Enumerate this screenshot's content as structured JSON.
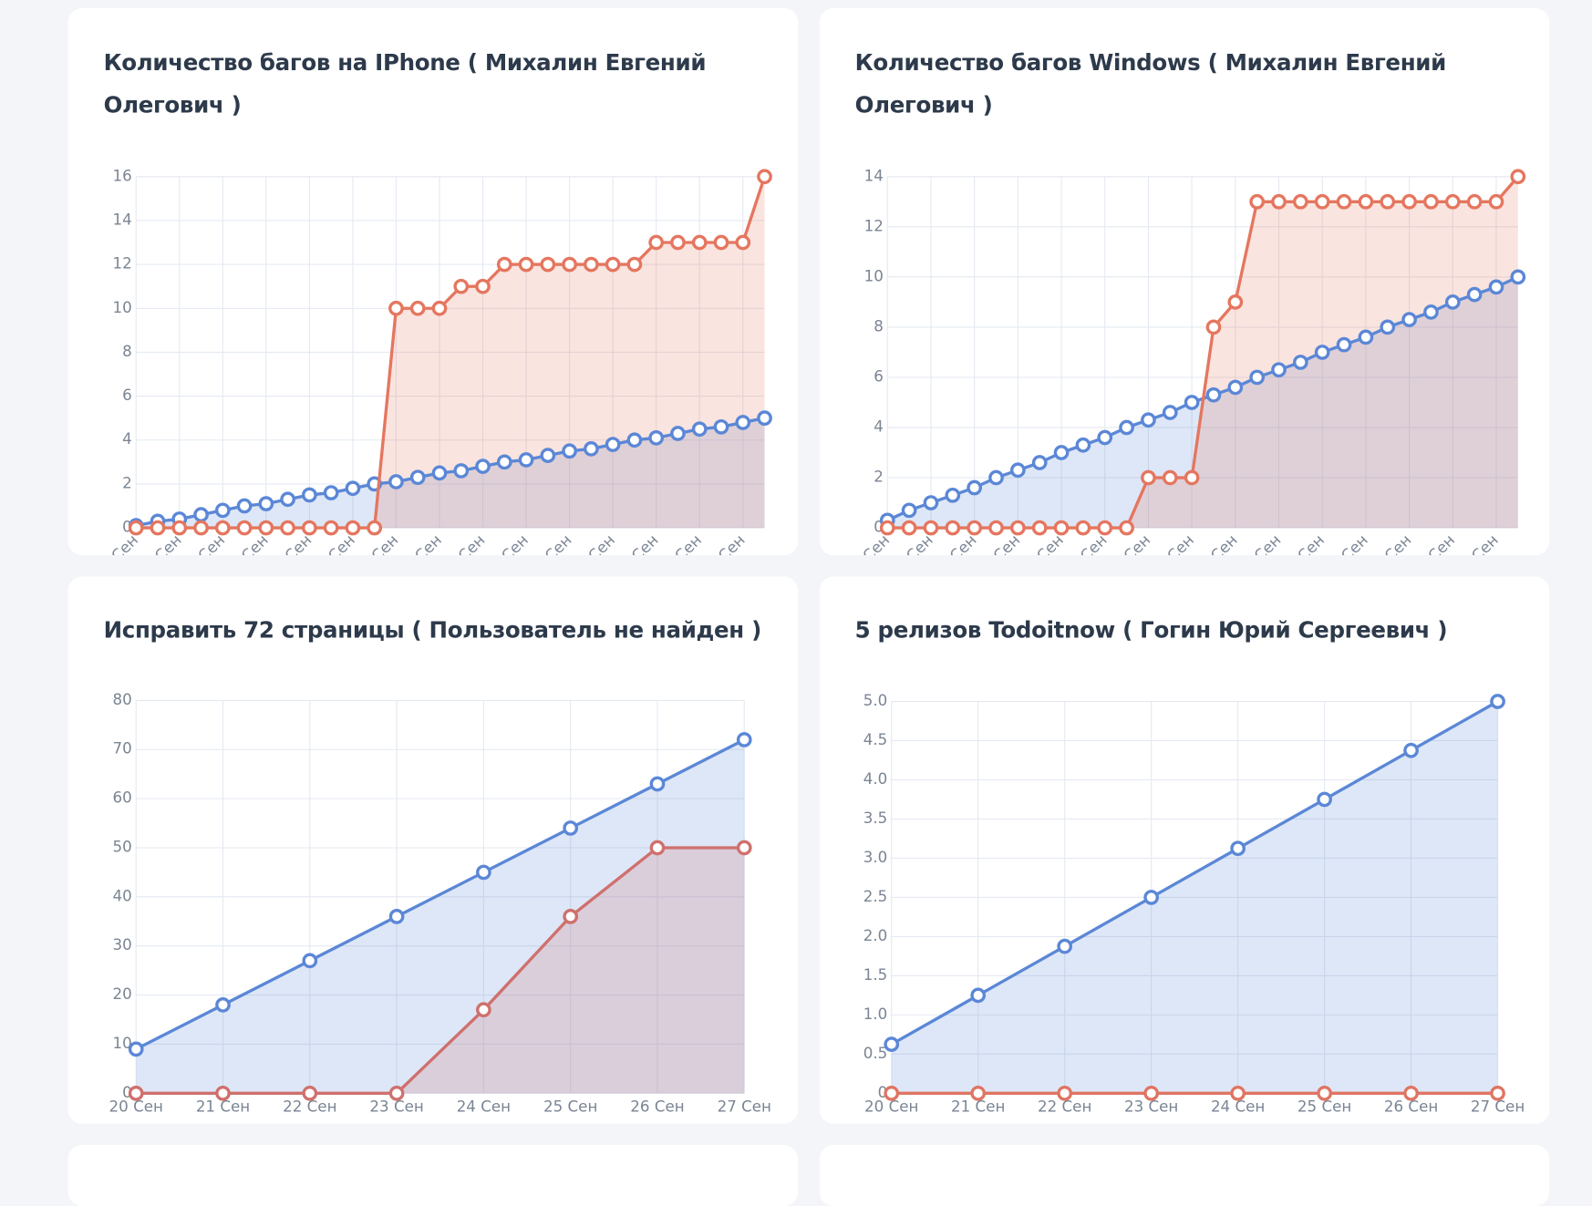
{
  "chart_data": [
    {
      "type": "line",
      "title": "Количество багов на IPhone ( Михалин Евгений Олегович )",
      "categories": [
        "Сен",
        null,
        "Сен",
        null,
        "Сен",
        null,
        "Сен",
        null,
        "Сен",
        null,
        "Сен",
        null,
        "Сен",
        null,
        "Сен",
        null,
        "Сен",
        null,
        "Сен",
        null,
        "Сен",
        null,
        "Сен",
        null,
        "Сен",
        null,
        "Сен",
        null,
        "Сен",
        null
      ],
      "series": [
        {
          "color": "#5b87d6",
          "values": [
            0.1,
            0.3,
            0.4,
            0.6,
            0.8,
            1.0,
            1.1,
            1.3,
            1.5,
            1.6,
            1.8,
            2.0,
            2.1,
            2.3,
            2.5,
            2.6,
            2.8,
            3.0,
            3.1,
            3.3,
            3.5,
            3.6,
            3.8,
            4.0,
            4.1,
            4.3,
            4.5,
            4.6,
            4.8,
            5.0
          ]
        },
        {
          "color": "#e5765f",
          "values": [
            0,
            0,
            0,
            0,
            0,
            0,
            0,
            0,
            0,
            0,
            0,
            0,
            10,
            10,
            10,
            11,
            11,
            12,
            12,
            12,
            12,
            12,
            12,
            12,
            13,
            13,
            13,
            13,
            13,
            16
          ]
        }
      ],
      "ylim": [
        0,
        16
      ],
      "yticks": [
        0,
        2,
        4,
        6,
        8,
        10,
        12,
        14,
        16
      ],
      "grid": true
    },
    {
      "type": "line",
      "title": "Количество багов Windows ( Михалин Евгений Олегович )",
      "categories": [
        "Сен",
        null,
        "Сен",
        null,
        "Сен",
        null,
        "Сен",
        null,
        "Сен",
        null,
        "Сен",
        null,
        "Сен",
        null,
        "Сен",
        null,
        "Сен",
        null,
        "Сен",
        null,
        "Сен",
        null,
        "Сен",
        null,
        "Сен",
        null,
        "Сен",
        null,
        "Сен",
        null
      ],
      "series": [
        {
          "color": "#5b87d6",
          "values": [
            0.3,
            0.7,
            1.0,
            1.3,
            1.6,
            2.0,
            2.3,
            2.6,
            3.0,
            3.3,
            3.6,
            4.0,
            4.3,
            4.6,
            5.0,
            5.3,
            5.6,
            6.0,
            6.3,
            6.6,
            7.0,
            7.3,
            7.6,
            8.0,
            8.3,
            8.6,
            9.0,
            9.3,
            9.6,
            10.0
          ]
        },
        {
          "color": "#e5765f",
          "values": [
            0,
            0,
            0,
            0,
            0,
            0,
            0,
            0,
            0,
            0,
            0,
            0,
            2,
            2,
            2,
            8,
            9,
            13,
            13,
            13,
            13,
            13,
            13,
            13,
            13,
            13,
            13,
            13,
            13,
            14
          ]
        }
      ],
      "ylim": [
        0,
        14
      ],
      "yticks": [
        0,
        2,
        4,
        6,
        8,
        10,
        12,
        14
      ],
      "grid": true
    },
    {
      "type": "line",
      "title": "Исправить 72 страницы ( Пользователь не найден )",
      "categories": [
        "20 Сен",
        "21 Сен",
        "22 Сен",
        "23 Сен",
        "24 Сен",
        "25 Сен",
        "26 Сен",
        "27 Сен"
      ],
      "series": [
        {
          "color": "#5b87d6",
          "values": [
            9,
            18,
            27,
            36,
            45,
            54,
            63,
            72
          ]
        },
        {
          "color": "#cf706d",
          "values": [
            0,
            0,
            0,
            0,
            17,
            36,
            50,
            50
          ]
        }
      ],
      "ylim": [
        0,
        80
      ],
      "yticks": [
        0,
        10,
        20,
        30,
        40,
        50,
        60,
        70,
        80
      ],
      "grid": true
    },
    {
      "type": "line",
      "title": "5 релизов Todoitnow ( Гогин Юрий Сергеевич )",
      "categories": [
        "20 Сен",
        "21 Сен",
        "22 Сен",
        "23 Сен",
        "24 Сен",
        "25 Сен",
        "26 Сен",
        "27 Сен"
      ],
      "series": [
        {
          "color": "#5b87d6",
          "values": [
            0.625,
            1.25,
            1.875,
            2.5,
            3.125,
            3.75,
            4.375,
            5
          ]
        },
        {
          "color": "#df7563",
          "values": [
            0,
            0,
            0,
            0,
            0,
            0,
            0,
            0
          ]
        }
      ],
      "ylim": [
        0,
        5
      ],
      "yticks": [
        0,
        0.5,
        {
          "value": 1,
          "label": "1.0"
        },
        1.5,
        {
          "value": 2,
          "label": "2.0"
        },
        2.5,
        {
          "value": 3,
          "label": "3.0"
        },
        3.5,
        {
          "value": 4,
          "label": "4.0"
        },
        4.5,
        {
          "value": 5,
          "label": "5.0"
        }
      ],
      "grid": true
    }
  ]
}
